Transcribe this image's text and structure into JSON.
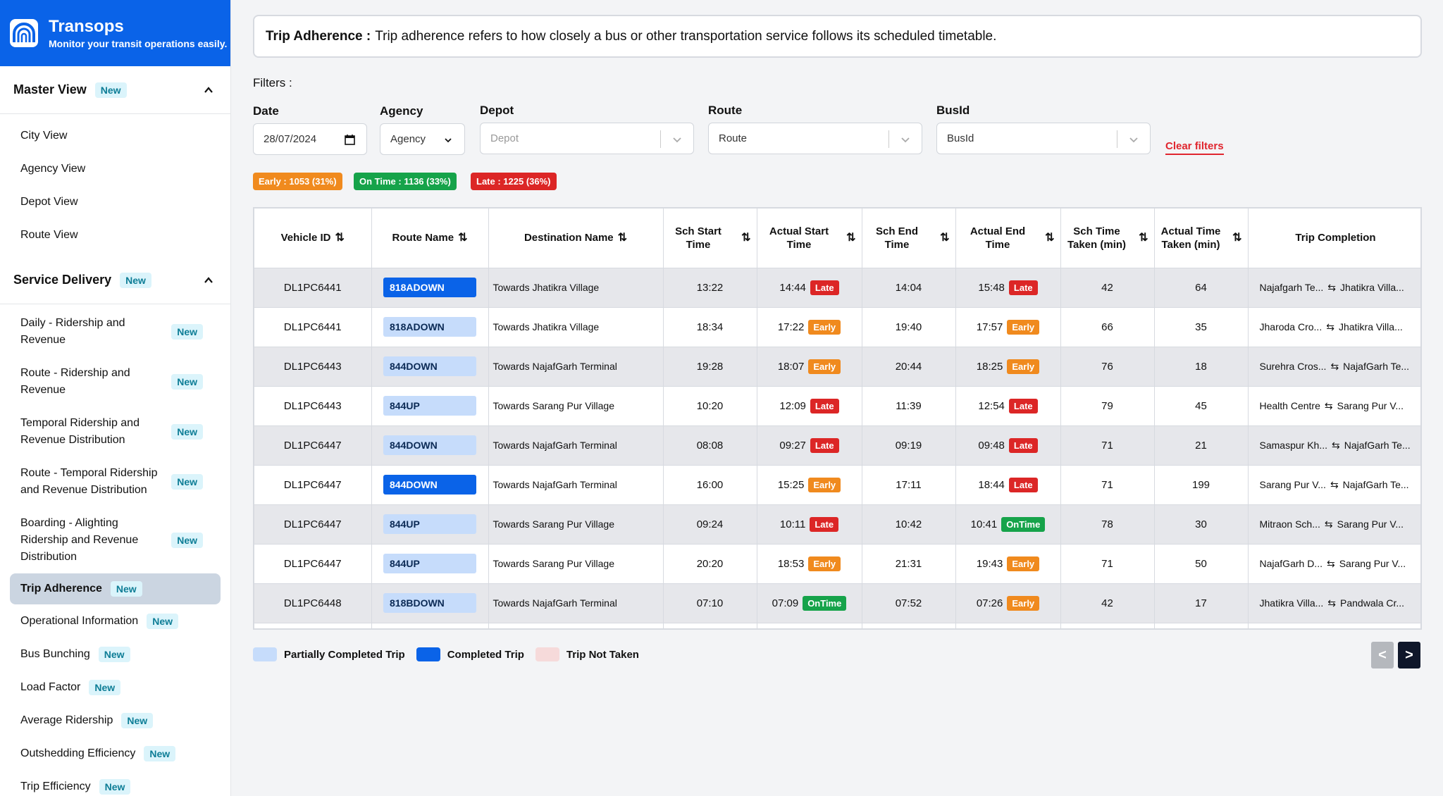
{
  "brand": {
    "title": "Transops",
    "subtitle": "Monitor your transit operations easily."
  },
  "sidebar": {
    "sections": [
      {
        "title": "Master View",
        "badge": "New",
        "items": [
          {
            "label": "City View"
          },
          {
            "label": "Agency View"
          },
          {
            "label": "Depot View"
          },
          {
            "label": "Route View"
          }
        ]
      },
      {
        "title": "Service Delivery",
        "badge": "New",
        "items": [
          {
            "label": "Daily - Ridership and Revenue",
            "badge": "New"
          },
          {
            "label": "Route - Ridership and Revenue",
            "badge": "New"
          },
          {
            "label": "Temporal Ridership and Revenue Distribution",
            "badge": "New"
          },
          {
            "label": "Route - Temporal Ridership and Revenue Distribution",
            "badge": "New"
          },
          {
            "label": "Boarding - Alighting Ridership and Revenue Distribution",
            "badge": "New"
          },
          {
            "label": "Trip Adherence",
            "badge": "New",
            "active": true
          },
          {
            "label": "Operational Information",
            "badge": "New"
          },
          {
            "label": "Bus Bunching",
            "badge": "New"
          },
          {
            "label": "Load Factor",
            "badge": "New"
          },
          {
            "label": "Average Ridership",
            "badge": "New"
          },
          {
            "label": "Outshedding Efficiency",
            "badge": "New"
          },
          {
            "label": "Trip Efficiency",
            "badge": "New"
          }
        ]
      }
    ]
  },
  "banner": {
    "title": "Trip Adherence :",
    "text": "Trip adherence refers to how closely a bus or other transportation service follows its scheduled timetable."
  },
  "filters": {
    "title": "Filters :",
    "date": {
      "label": "Date",
      "value": "28/07/2024"
    },
    "agency": {
      "label": "Agency",
      "value": "Agency"
    },
    "depot": {
      "label": "Depot",
      "placeholder": "Depot"
    },
    "route": {
      "label": "Route",
      "placeholder": "Route"
    },
    "bus": {
      "label": "BusId",
      "placeholder": "BusId"
    },
    "clear": "Clear filters"
  },
  "stats": {
    "early": "Early : 1053 (31%)",
    "ontime": "On Time : 1136 (33%)",
    "late": "Late : 1225 (36%)"
  },
  "colors": {
    "early": "#f08a1e",
    "ontime": "#16a34a",
    "late": "#dc2626",
    "partial": "#c6dcfb",
    "complete": "#0a63e8",
    "not_taken": "#f6dada"
  },
  "table": {
    "columns": [
      "Vehicle ID",
      "Route Name",
      "Destination Name",
      "Sch Start Time",
      "Actual Start Time",
      "Sch End Time",
      "Actual End Time",
      "Sch Time Taken (min)",
      "Actual Time Taken (min)",
      "Trip Completion"
    ],
    "rows": [
      {
        "vehicle": "DL1PC6441",
        "route": "818ADOWN",
        "route_state": "complete",
        "dest": "Towards Jhatikra Village",
        "sch_start": "13:22",
        "act_start": "14:44",
        "start_status": "Late",
        "sch_end": "14:04",
        "act_end": "15:48",
        "end_status": "Late",
        "sch_taken": "42",
        "act_taken": "64",
        "from": "Najafgarh Te...",
        "to": "Jhatikra Villa..."
      },
      {
        "vehicle": "DL1PC6441",
        "route": "818ADOWN",
        "route_state": "partial",
        "dest": "Towards Jhatikra Village",
        "sch_start": "18:34",
        "act_start": "17:22",
        "start_status": "Early",
        "sch_end": "19:40",
        "act_end": "17:57",
        "end_status": "Early",
        "sch_taken": "66",
        "act_taken": "35",
        "from": "Jharoda Cro...",
        "to": "Jhatikra Villa..."
      },
      {
        "vehicle": "DL1PC6443",
        "route": "844DOWN",
        "route_state": "partial",
        "dest": "Towards NajafGarh Terminal",
        "sch_start": "19:28",
        "act_start": "18:07",
        "start_status": "Early",
        "sch_end": "20:44",
        "act_end": "18:25",
        "end_status": "Early",
        "sch_taken": "76",
        "act_taken": "18",
        "from": "Surehra Cros...",
        "to": "NajafGarh Te..."
      },
      {
        "vehicle": "DL1PC6443",
        "route": "844UP",
        "route_state": "partial",
        "dest": "Towards Sarang Pur Village",
        "sch_start": "10:20",
        "act_start": "12:09",
        "start_status": "Late",
        "sch_end": "11:39",
        "act_end": "12:54",
        "end_status": "Late",
        "sch_taken": "79",
        "act_taken": "45",
        "from": "Health Centre",
        "to": "Sarang Pur V..."
      },
      {
        "vehicle": "DL1PC6447",
        "route": "844DOWN",
        "route_state": "partial",
        "dest": "Towards NajafGarh Terminal",
        "sch_start": "08:08",
        "act_start": "09:27",
        "start_status": "Late",
        "sch_end": "09:19",
        "act_end": "09:48",
        "end_status": "Late",
        "sch_taken": "71",
        "act_taken": "21",
        "from": "Samaspur Kh...",
        "to": "NajafGarh Te..."
      },
      {
        "vehicle": "DL1PC6447",
        "route": "844DOWN",
        "route_state": "complete",
        "dest": "Towards NajafGarh Terminal",
        "sch_start": "16:00",
        "act_start": "15:25",
        "start_status": "Early",
        "sch_end": "17:11",
        "act_end": "18:44",
        "end_status": "Late",
        "sch_taken": "71",
        "act_taken": "199",
        "from": "Sarang Pur V...",
        "to": "NajafGarh Te..."
      },
      {
        "vehicle": "DL1PC6447",
        "route": "844UP",
        "route_state": "partial",
        "dest": "Towards Sarang Pur Village",
        "sch_start": "09:24",
        "act_start": "10:11",
        "start_status": "Late",
        "sch_end": "10:42",
        "act_end": "10:41",
        "end_status": "OnTime",
        "sch_taken": "78",
        "act_taken": "30",
        "from": "Mitraon Sch...",
        "to": "Sarang Pur V..."
      },
      {
        "vehicle": "DL1PC6447",
        "route": "844UP",
        "route_state": "partial",
        "dest": "Towards Sarang Pur Village",
        "sch_start": "20:20",
        "act_start": "18:53",
        "start_status": "Early",
        "sch_end": "21:31",
        "act_end": "19:43",
        "end_status": "Early",
        "sch_taken": "71",
        "act_taken": "50",
        "from": "NajafGarh D...",
        "to": "Sarang Pur V..."
      },
      {
        "vehicle": "DL1PC6448",
        "route": "818BDOWN",
        "route_state": "partial",
        "dest": "Towards NajafGarh Terminal",
        "sch_start": "07:10",
        "act_start": "07:09",
        "start_status": "OnTime",
        "sch_end": "07:52",
        "act_end": "07:26",
        "end_status": "Early",
        "sch_taken": "42",
        "act_taken": "17",
        "from": "Jhatikra Villa...",
        "to": "Pandwala Cr..."
      }
    ]
  },
  "legend": {
    "partial": "Partially Completed Trip",
    "complete": "Completed Trip",
    "not_taken": "Trip Not Taken"
  },
  "pager": {
    "prev": "<",
    "next": ">"
  }
}
